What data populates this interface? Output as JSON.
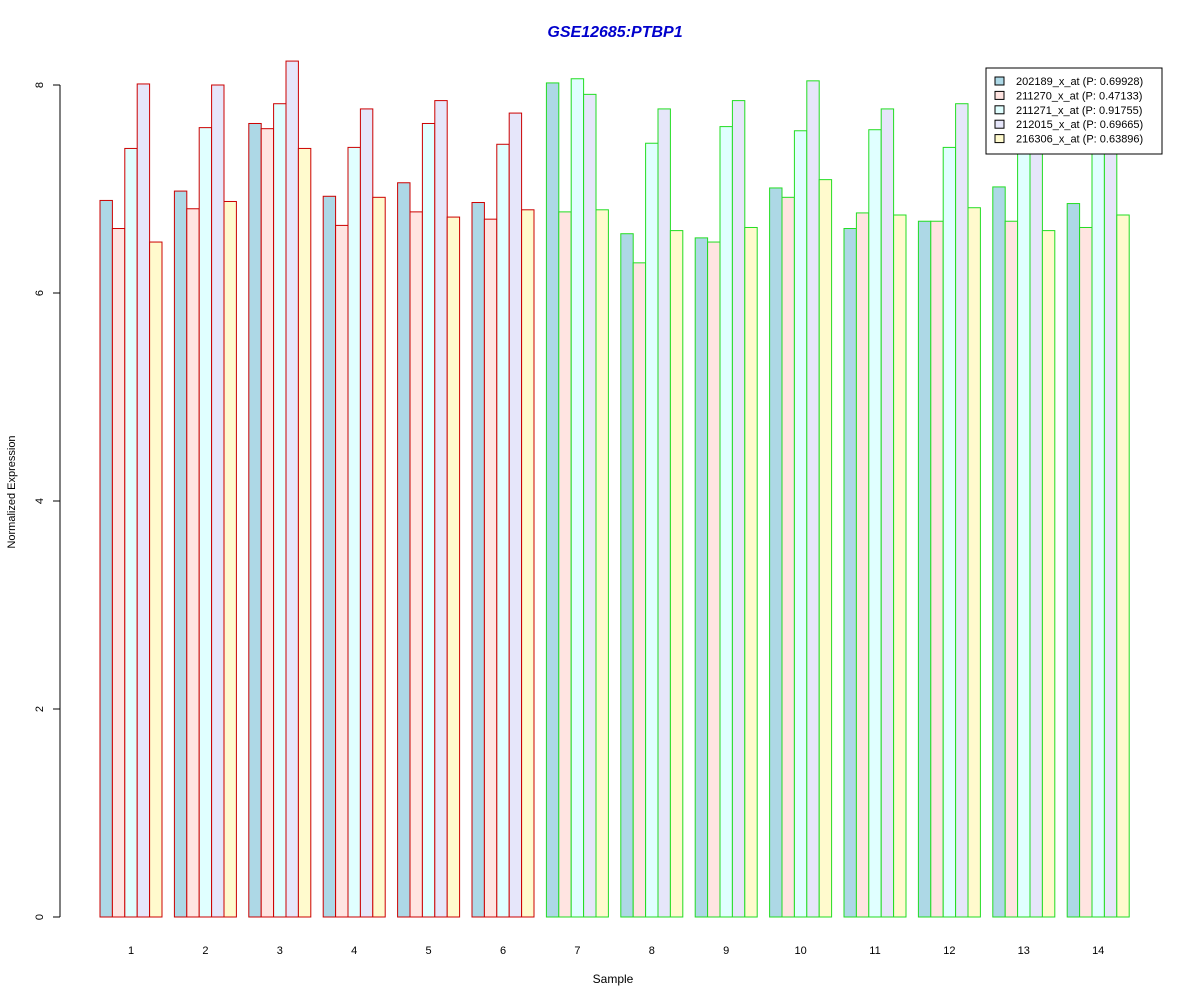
{
  "chart_data": {
    "type": "bar",
    "title": "GSE12685:PTBP1",
    "xlabel": "Sample",
    "ylabel": "Normalized Expression",
    "ylim": [
      0,
      8.3
    ],
    "yticks": [
      0,
      2,
      4,
      6,
      8
    ],
    "grid": false,
    "legend_position": "top-right",
    "categories": [
      "1",
      "2",
      "3",
      "4",
      "5",
      "6",
      "7",
      "8",
      "9",
      "10",
      "11",
      "12",
      "13",
      "14"
    ],
    "group_border_colors": [
      "#cc0000",
      "#cc0000",
      "#cc0000",
      "#cc0000",
      "#cc0000",
      "#cc0000",
      "#22dd22",
      "#22dd22",
      "#22dd22",
      "#22dd22",
      "#22dd22",
      "#22dd22",
      "#22dd22",
      "#22dd22"
    ],
    "series": [
      {
        "name": "202189_x_at (P: 0.69928)",
        "color": "#add8e6",
        "values": [
          6.89,
          6.98,
          7.63,
          6.93,
          7.06,
          6.87,
          8.02,
          6.57,
          6.53,
          7.01,
          6.62,
          6.69,
          7.02,
          6.86
        ]
      },
      {
        "name": "211270_x_at (P: 0.47133)",
        "color": "#ffe4e1",
        "values": [
          6.62,
          6.81,
          7.58,
          6.65,
          6.78,
          6.71,
          6.78,
          6.29,
          6.49,
          6.92,
          6.77,
          6.69,
          6.69,
          6.63
        ]
      },
      {
        "name": "211271_x_at (P: 0.91755)",
        "color": "#e0ffff",
        "values": [
          7.39,
          7.59,
          7.82,
          7.4,
          7.63,
          7.43,
          8.06,
          7.44,
          7.6,
          7.56,
          7.57,
          7.4,
          7.41,
          7.41
        ]
      },
      {
        "name": "212015_x_at (P: 0.69665)",
        "color": "#e6e6fa",
        "values": [
          8.01,
          8.0,
          8.23,
          7.77,
          7.85,
          7.73,
          7.91,
          7.77,
          7.85,
          8.04,
          7.77,
          7.82,
          7.42,
          7.42
        ]
      },
      {
        "name": "216306_x_at (P: 0.63896)",
        "color": "#fffacd",
        "values": [
          6.49,
          6.88,
          7.39,
          6.92,
          6.73,
          6.8,
          6.8,
          6.6,
          6.63,
          7.09,
          6.75,
          6.82,
          6.6,
          6.75
        ]
      }
    ]
  }
}
